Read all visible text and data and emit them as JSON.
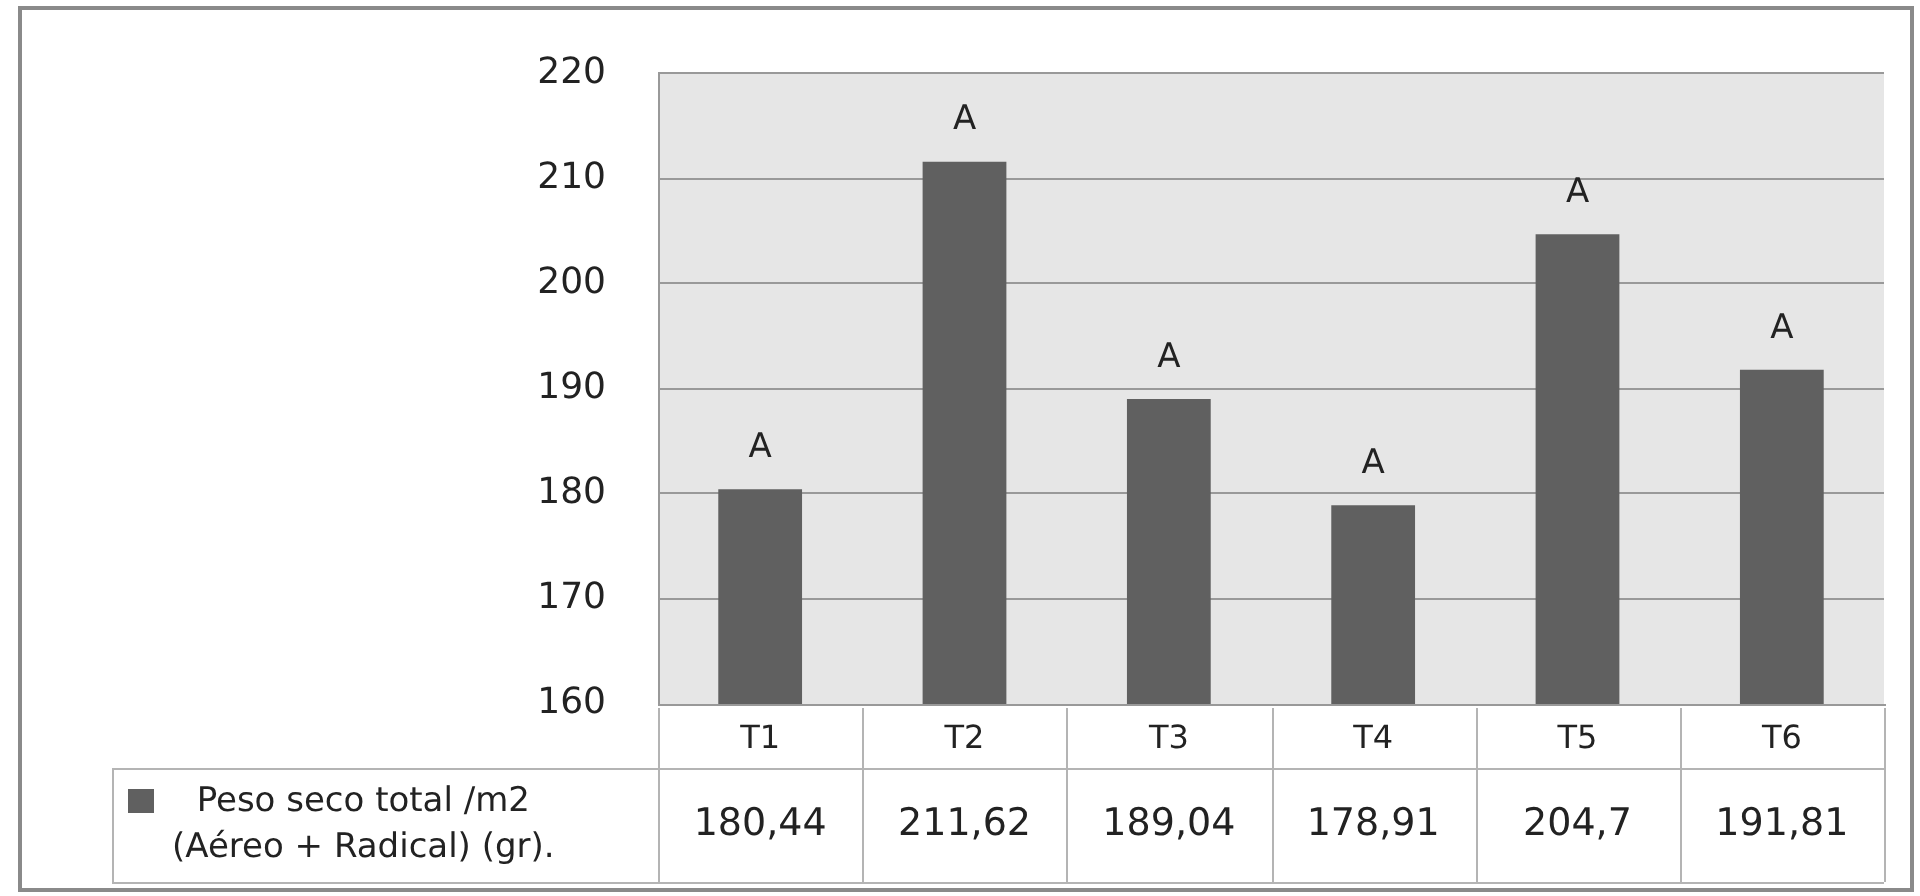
{
  "chart_data": {
    "type": "bar",
    "categories": [
      "T1",
      "T2",
      "T3",
      "T4",
      "T5",
      "T6"
    ],
    "series": [
      {
        "name": "Peso seco total /m2 (Aéreo + Radical) (gr).",
        "color": "#606060",
        "values": [
          180.44,
          211.62,
          189.04,
          178.91,
          204.7,
          191.81
        ],
        "value_labels": [
          "180,44",
          "211,62",
          "189,04",
          "178,91",
          "204,7",
          "191,81"
        ]
      }
    ],
    "ylim": [
      160,
      220
    ],
    "yticks": [
      160,
      170,
      180,
      190,
      200,
      210,
      220
    ],
    "grid": "y",
    "legend": "bottom left",
    "annotations": [
      {
        "text": "A",
        "x": "T1",
        "y": 180.44
      },
      {
        "text": "A",
        "x": "T2",
        "y": 211.62
      },
      {
        "text": "A",
        "x": "T3",
        "y": 189.04
      },
      {
        "text": "A",
        "x": "T4",
        "y": 178.91
      },
      {
        "text": "A",
        "x": "T5",
        "y": 204.7
      },
      {
        "text": "A",
        "x": "T6",
        "y": 191.81
      }
    ]
  }
}
